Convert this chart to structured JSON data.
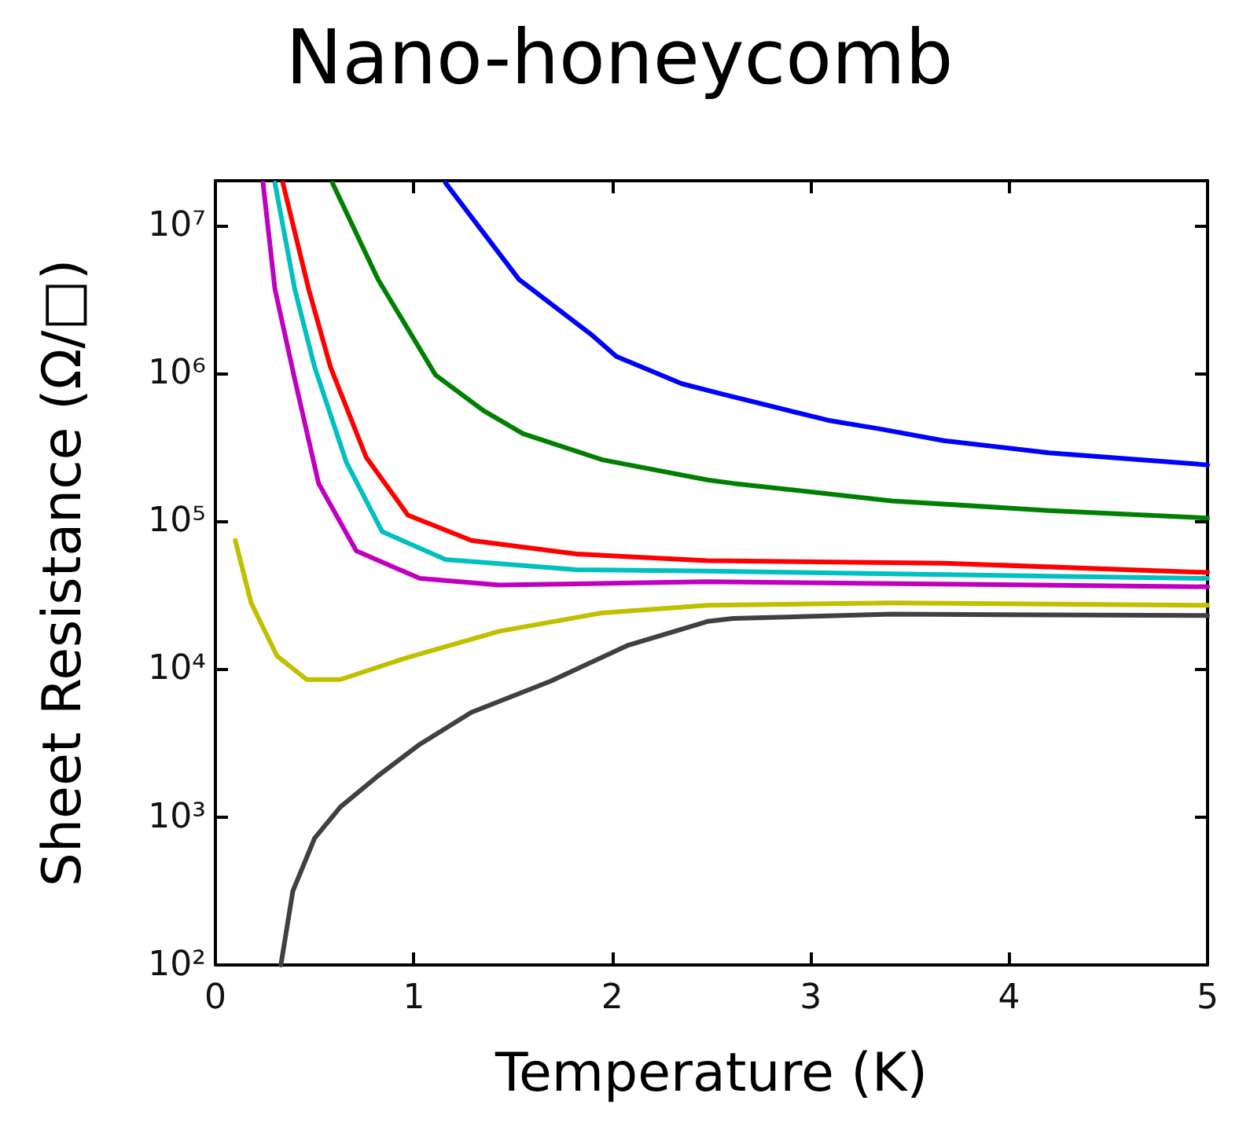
{
  "chart_data": {
    "type": "line",
    "title": "Nano-honeycomb",
    "xlabel": "Temperature (K)",
    "ylabel": "Sheet Resistance (Ω/□)",
    "xlim": [
      0,
      5
    ],
    "xticks": [
      0,
      1,
      2,
      3,
      4,
      5
    ],
    "ylim": [
      100,
      20000000
    ],
    "log": "y",
    "yticks": [
      {
        "value": 100,
        "label": "10²"
      },
      {
        "value": 1000,
        "label": "10³"
      },
      {
        "value": 10000,
        "label": "10⁴"
      },
      {
        "value": 100000,
        "label": "10⁵"
      },
      {
        "value": 1000000,
        "label": "10⁶"
      },
      {
        "value": 10000000,
        "label": "10⁷"
      }
    ],
    "grid": false,
    "marker": "none",
    "line_style": "solid",
    "series": [
      {
        "color": "#0000ff",
        "x": [
          1.16,
          1.53,
          1.9,
          2.02,
          2.35,
          2.56,
          3.09,
          3.35,
          3.67,
          4.2,
          5
        ],
        "values": [
          19300000,
          4300000,
          1800000,
          1300000,
          850000,
          720000,
          480000,
          420000,
          350000,
          290000,
          240000
        ]
      },
      {
        "color": "#008000",
        "x": [
          0.59,
          0.82,
          1.11,
          1.35,
          1.55,
          1.95,
          2.48,
          2.61,
          3.41,
          4.2,
          5
        ],
        "values": [
          19300000,
          4300000,
          970000,
          560000,
          390000,
          260000,
          190000,
          180000,
          137000,
          118000,
          105000
        ]
      },
      {
        "color": "#ff0000",
        "x": [
          0.34,
          0.47,
          0.58,
          0.76,
          0.97,
          1.29,
          1.82,
          2.48,
          3.67,
          5
        ],
        "values": [
          19300000,
          3700000,
          1100000,
          270000,
          110000,
          74000,
          60000,
          54000,
          52000,
          45000
        ]
      },
      {
        "color": "#00c0c0",
        "x": [
          0.3,
          0.4,
          0.5,
          0.66,
          0.84,
          1.16,
          1.82,
          2.48,
          5
        ],
        "values": [
          19300000,
          3700000,
          1100000,
          250000,
          85000,
          55000,
          47000,
          46000,
          41000
        ]
      },
      {
        "color": "#c000c0",
        "x": [
          0.24,
          0.3,
          0.4,
          0.52,
          0.71,
          1.03,
          1.43,
          2.48,
          5
        ],
        "values": [
          19300000,
          3700000,
          910000,
          180000,
          63000,
          41000,
          37000,
          39000,
          36000
        ]
      },
      {
        "color": "#c0c000",
        "x": [
          0.1,
          0.18,
          0.31,
          0.46,
          0.63,
          0.97,
          1.43,
          1.95,
          2.48,
          3.41,
          5
        ],
        "values": [
          74000,
          28000,
          12300,
          8500,
          8500,
          12000,
          18000,
          24000,
          27000,
          28000,
          27000
        ]
      },
      {
        "color": "#404040",
        "x": [
          0.33,
          0.39,
          0.5,
          0.63,
          0.82,
          1.03,
          1.29,
          1.69,
          2.08,
          2.48,
          2.61,
          3.41,
          5
        ],
        "values": [
          100,
          315,
          720,
          1170,
          1900,
          3100,
          5100,
          8300,
          14500,
          21000,
          22000,
          23500,
          23000
        ]
      }
    ]
  }
}
